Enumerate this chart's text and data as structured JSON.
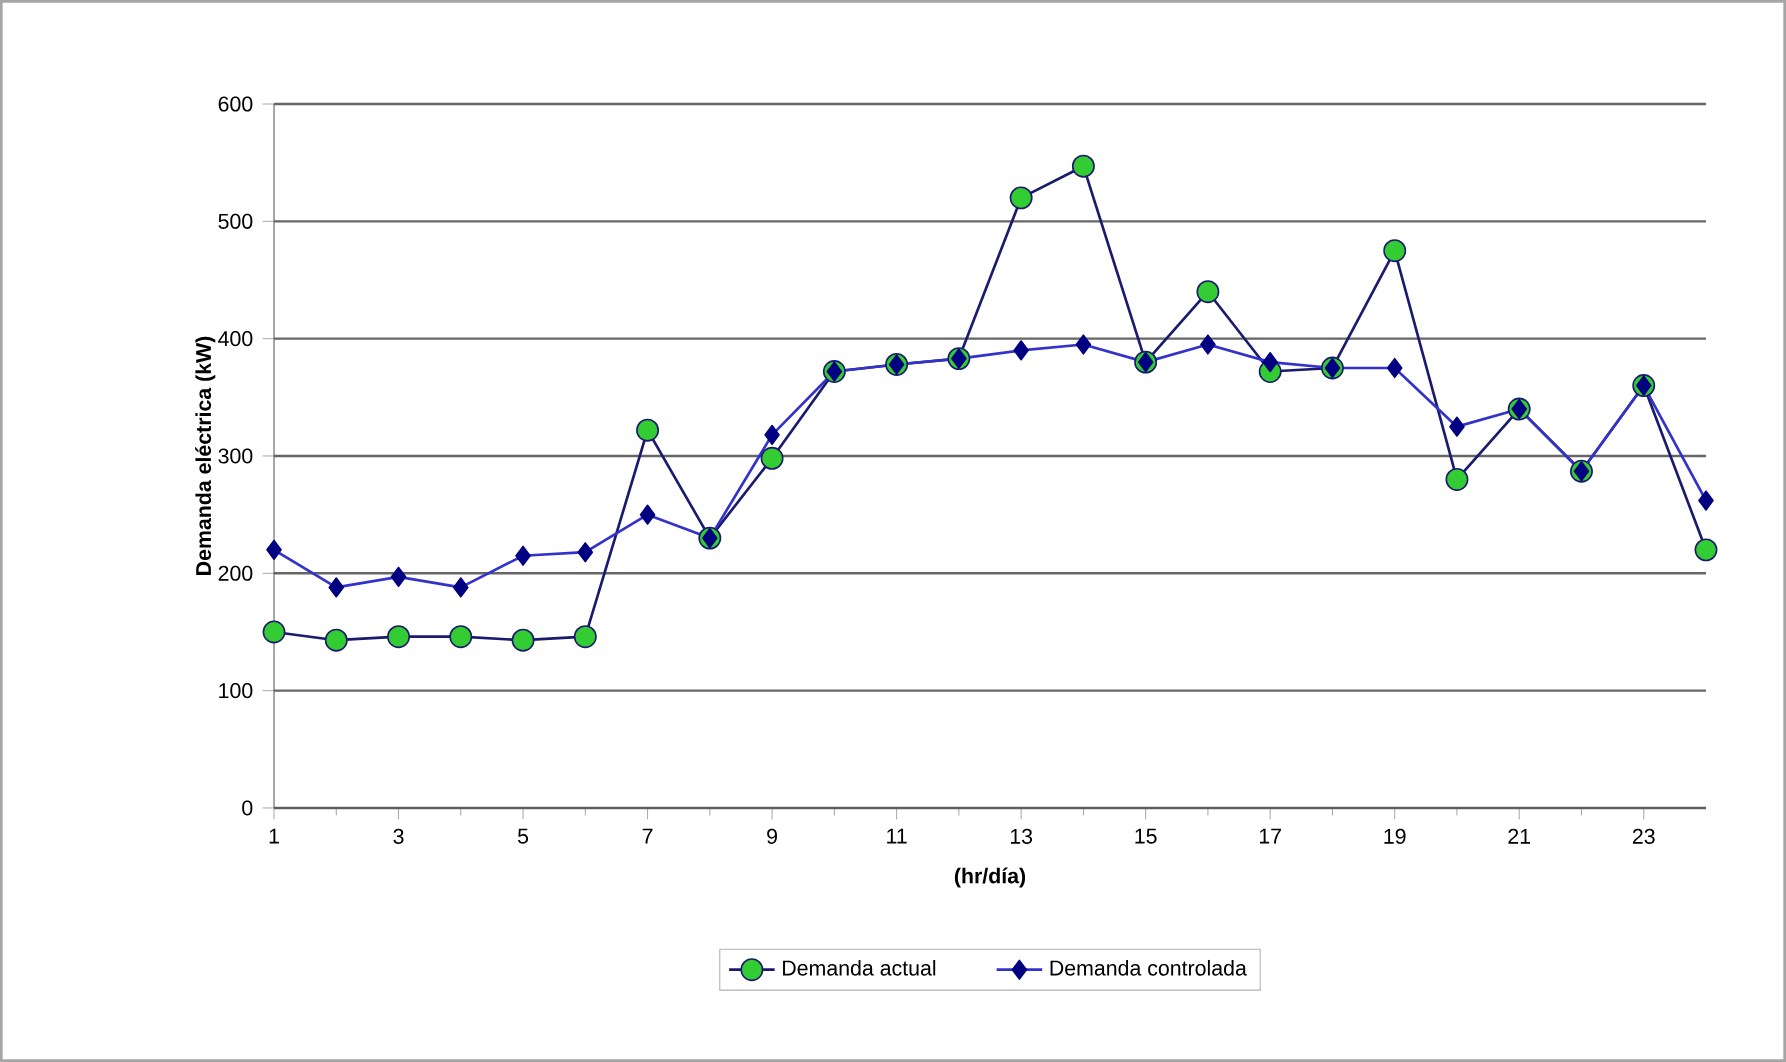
{
  "chart_data": {
    "type": "line",
    "xlabel": "(hr/día)",
    "ylabel": "Demanda eléctrica (kW)",
    "x": [
      1,
      2,
      3,
      4,
      5,
      6,
      7,
      8,
      9,
      10,
      11,
      12,
      13,
      14,
      15,
      16,
      17,
      18,
      19,
      20,
      21,
      22,
      23,
      24
    ],
    "series": [
      {
        "name": "Demanda actual",
        "color": "#33cc33",
        "marker": "circle",
        "values": [
          150,
          143,
          146,
          146,
          143,
          146,
          322,
          230,
          298,
          372,
          378,
          383,
          520,
          547,
          380,
          440,
          372,
          375,
          475,
          280,
          340,
          287,
          360,
          220
        ]
      },
      {
        "name": "Demanda controlada",
        "color": "#000080",
        "marker": "diamond",
        "values": [
          220,
          188,
          197,
          188,
          215,
          218,
          250,
          230,
          318,
          372,
          378,
          383,
          390,
          395,
          380,
          395,
          380,
          375,
          375,
          325,
          340,
          287,
          360,
          262
        ]
      }
    ],
    "xlim": [
      1,
      24
    ],
    "xticks": [
      1,
      3,
      5,
      7,
      9,
      11,
      13,
      15,
      17,
      19,
      21,
      23
    ],
    "ylim": [
      0,
      600
    ],
    "yticks": [
      0,
      100,
      200,
      300,
      400,
      500,
      600
    ],
    "grid": "y",
    "legend": "bottom",
    "line_style": "solid"
  }
}
